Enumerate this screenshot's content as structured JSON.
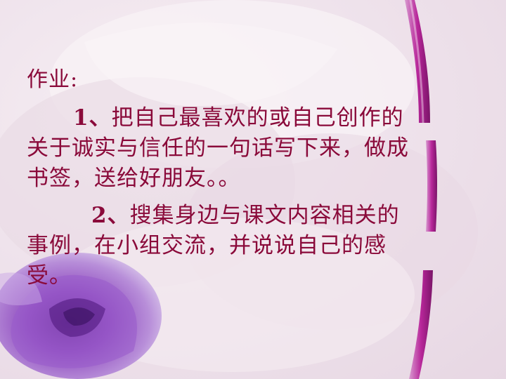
{
  "slide": {
    "heading": "作业:",
    "item1": {
      "number": "1、",
      "text": "把自己最喜欢的或自己创作的关于诚实与信任的一句话写下来，做成书签，送给好朋友。。"
    },
    "item2": {
      "number": "2、",
      "text": "搜集身边与课文内容相关的事例，在小组交流，并说说自己的感受。"
    }
  },
  "colors": {
    "text": "#8a0a3a",
    "background": "#efe3ec",
    "accent_arcs": "#b8279a",
    "rose": "#9a52c4"
  }
}
